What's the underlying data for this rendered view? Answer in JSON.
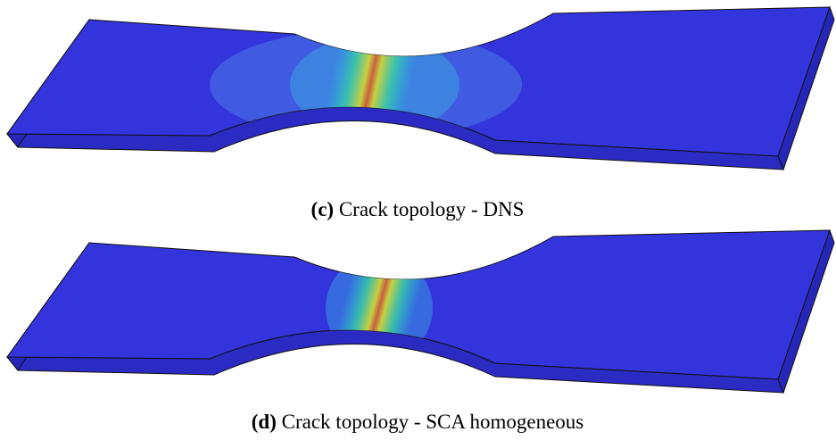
{
  "figures": [
    {
      "label": "(c)",
      "caption": "Crack topology - DNS"
    },
    {
      "label": "(d)",
      "caption": "Crack topology - SCA homogeneous"
    }
  ]
}
